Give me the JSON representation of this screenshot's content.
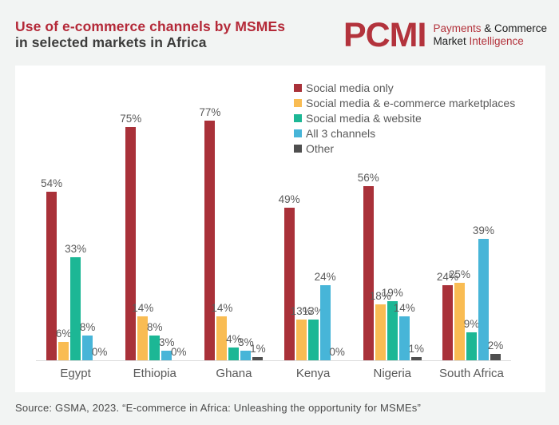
{
  "header": {
    "title_line1": "Use of e-commerce channels by MSMEs",
    "title_line2": "in selected markets in Africa"
  },
  "logo": {
    "name": "PCMI",
    "tagline_l1_red": "Payments",
    "tagline_l1_dark": " & Commerce",
    "tagline_l2_dark": "Market",
    "tagline_l2_red": " Intelligence"
  },
  "chart_data": {
    "type": "bar",
    "title": "Use of e-commerce channels by MSMEs in selected markets in Africa",
    "categories": [
      "Egypt",
      "Ethiopia",
      "Ghana",
      "Kenya",
      "Nigeria",
      "South Africa"
    ],
    "series": [
      {
        "name": "Social media only",
        "color": "#A93139",
        "values": [
          54,
          75,
          77,
          49,
          56,
          24
        ]
      },
      {
        "name": "Social media & e-commerce marketplaces",
        "color": "#F9BC53",
        "values": [
          6,
          14,
          14,
          13,
          18,
          25
        ]
      },
      {
        "name": "Social media & website",
        "color": "#1CB795",
        "values": [
          33,
          8,
          4,
          13,
          19,
          9
        ]
      },
      {
        "name": "All 3 channels",
        "color": "#47B5D8",
        "values": [
          8,
          3,
          3,
          24,
          14,
          39
        ]
      },
      {
        "name": "Other",
        "color": "#4F4F4F",
        "values": [
          0,
          0,
          1,
          0,
          1,
          2
        ]
      }
    ],
    "value_suffix": "%",
    "ylim": [
      0,
      100
    ],
    "grid": false,
    "legend_position": "top-right",
    "data_labels": true,
    "xlabel": "",
    "ylabel": ""
  },
  "source": "Source: GSMA, 2023. “E-commerce in Africa: Unleashing the opportunity for MSMEs”",
  "colors": {
    "brand_red": "#B42938",
    "background": "#F2F4F3",
    "card": "#FFFFFF",
    "text_dark": "#3D3D3C",
    "text_gray": "#5A5A5A",
    "axis_line": "#DCDCDC"
  }
}
